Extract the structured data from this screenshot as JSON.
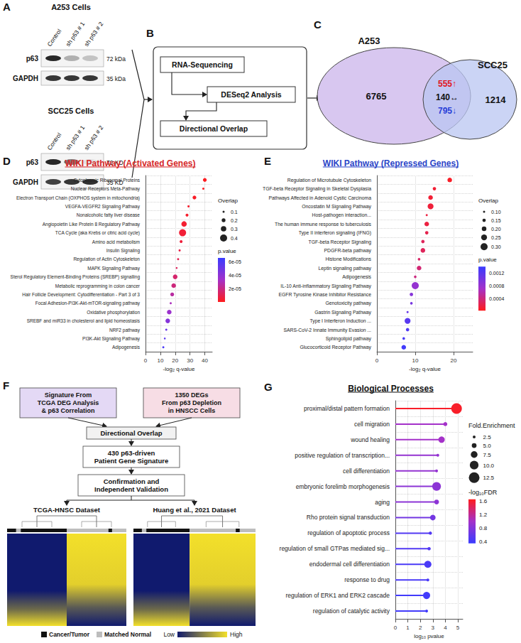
{
  "panel_letters": [
    "A",
    "B",
    "C",
    "D",
    "E",
    "F",
    "G"
  ],
  "panels": {
    "A": {
      "blots": [
        {
          "title": "A253 Cells",
          "lanes": [
            "Control",
            "sh p63 # 1",
            "sh p63 # 2"
          ],
          "rows": [
            {
              "protein": "p63",
              "size": "72 kDa"
            },
            {
              "protein": "GAPDH",
              "size": "35 kDa"
            }
          ]
        },
        {
          "title": "SCC25 Cells",
          "lanes": [
            "Control",
            "sh p63 # 1",
            "sh p63 # 2"
          ],
          "rows": [
            {
              "protein": "p63",
              "size": "72 KD"
            },
            {
              "protein": "GAPDH",
              "size": "35 KD"
            }
          ]
        }
      ]
    },
    "B": {
      "steps": [
        "RNA-Sequencing",
        "DESeq2 Analysis",
        "Directional Overlap"
      ]
    },
    "C": {
      "sets": [
        "A253",
        "SCC25"
      ],
      "only_first": "6765",
      "only_second": "1214",
      "shared": [
        "555↑",
        "140↔",
        "795↓"
      ]
    },
    "F": {
      "sources": [
        [
          "Signature From",
          "TCGA DEG Analysis",
          "& p63 Correlation"
        ],
        [
          "1350 DEGs",
          "From p63 Depletion",
          "in HNSCC Cells"
        ]
      ],
      "overlap": "Directional Overlap",
      "signature": [
        "430 p63-driven",
        "Patient Gene Signature"
      ],
      "validation": [
        "Confirmation and",
        "Independent Validation"
      ],
      "datasets": [
        "TCGA-HNSC Dataset",
        "Huang et al., 2021 Dataset"
      ],
      "legend": {
        "tumor": "Cancer/Tumor",
        "normal": "Matched Normal",
        "low": "Low",
        "high": "High"
      }
    }
  },
  "chart_data": [
    {
      "type": "scatter",
      "title": "WIKI Pathway (Activated Genes)",
      "x_label": "-log₂ q-value",
      "categories": [
        "Cytoplasmic Ribosomal Proteins",
        "Nuclear Receptors Meta-Pathway",
        "Electron Transport Chain (OXPHOS system in mitochondria)",
        "VEGFA-VEGFR2 Signaling Pathway",
        "Nonalcoholic fatty liver disease",
        "Angiopoietin Like Protein 8 Regulatory Pathway",
        "TCA Cycle (aka Krebs or citric acid cycle)",
        "Amino acid metabolism",
        "Insulin Signaling",
        "Regulation of Actin Cytoskeleton",
        "MAPK Signaling Pathway",
        "Sterol Regulatory Element-Binding Proteins (SREBP) signalling",
        "Metabolic reprogramming in colon cancer",
        "Hair Follicle Development: Cytodifferentiation - Part 3 of 3",
        "Focal Adhesion-PI3K-Akt-mTOR-signaling pathway",
        "Oxidative phosphorylation",
        "SREBF and miR33 in cholesterol and lipid homeostasis",
        "NRF2 pathway",
        "PI3K-Akt Signaling Pathway",
        "Adipogenesis"
      ],
      "values": [
        40,
        39,
        33,
        29,
        28,
        26,
        25,
        24,
        23,
        22,
        21,
        20,
        19,
        18,
        17,
        16,
        15,
        14,
        13,
        12
      ],
      "overlap": [
        0.2,
        0.1,
        0.2,
        0.1,
        0.15,
        0.3,
        0.4,
        0.15,
        0.1,
        0.1,
        0.08,
        0.25,
        0.25,
        0.2,
        0.1,
        0.25,
        0.25,
        0.1,
        0.08,
        0.1
      ],
      "p_value": [
        1e-06,
        1e-06,
        2e-06,
        3e-06,
        3e-06,
        4e-06,
        5e-06,
        6e-06,
        8e-06,
        1e-05,
        1.2e-05,
        1.5e-05,
        1.8e-05,
        2.5e-05,
        3e-05,
        3.5e-05,
        4.2e-05,
        5e-05,
        5.5e-05,
        6e-05
      ],
      "xlim": [
        0,
        45
      ],
      "xticks": [
        0,
        10,
        20,
        30,
        40
      ],
      "grid": true,
      "size_legend": {
        "title": "Overlap",
        "ticks": [
          0.1,
          0.2,
          0.3,
          0.4
        ]
      },
      "color_bar": {
        "title": "p.value",
        "range": [
          0,
          6.5e-05
        ],
        "ticks": [
          {
            "value": 6e-05,
            "label": "6e-05"
          },
          {
            "value": 4e-05,
            "label": "4e-05"
          },
          {
            "value": 2e-05,
            "label": "2e-05"
          }
        ],
        "colors": [
          "#ff1c1c",
          "#a431c9",
          "#3a3cff"
        ]
      }
    },
    {
      "type": "scatter",
      "title": "WIKI Pathway (Repressed Genes)",
      "x_label": "-log₂ q-value",
      "categories": [
        "Regulation of Microtubule Cytoskeleton",
        "TGF-beta Receptor Signaling in Skeletal Dysplasia",
        "Pathways Affected in Adenoid Cystic Carcinoma",
        "Oncostatin M Signaling Pathway",
        "Host-pathogen interaction...",
        "The human immune response to tuberculosis",
        "Type II interferon signaling (IFNG)",
        "TGF-beta Receptor Signaling",
        "PDGFR-beta pathway",
        "Histone Modifications",
        "Leptin signaling pathway",
        "Adipogenesis",
        "IL-10 Anti-inflammatory Signaling Pathway",
        "EGFR Tyrosine Kinase Inhibitor Resistance",
        "Genotoxicity pathway",
        "Gastrin Signaling Pathway",
        "Type I Interferon Induction ...",
        "SARS-CoV-2 Innate Immunity Evasion ...",
        "Sphingolipid pathway",
        "Glucocorticoid Receptor Pathway"
      ],
      "values": [
        19,
        15,
        14,
        14,
        13,
        13,
        13,
        12,
        12,
        11,
        11,
        10,
        10,
        9,
        9,
        8,
        8,
        8,
        7,
        7
      ],
      "overlap": [
        0.2,
        0.15,
        0.2,
        0.25,
        0.1,
        0.2,
        0.15,
        0.15,
        0.2,
        0.12,
        0.2,
        0.12,
        0.3,
        0.15,
        0.12,
        0.1,
        0.25,
        0.15,
        0.12,
        0.2
      ],
      "p_value": [
        5e-05,
        0.0001,
        0.0001,
        0.00012,
        0.00015,
        0.00015,
        0.0002,
        0.00025,
        0.00025,
        0.0003,
        0.00035,
        0.0004,
        0.0008,
        0.0009,
        0.001,
        0.0011,
        0.0012,
        0.00125,
        0.0013,
        0.00135
      ],
      "xlim": [
        0,
        25
      ],
      "xticks": [
        0,
        10,
        20
      ],
      "grid": true,
      "size_legend": {
        "title": "Overlap",
        "ticks": [
          {
            "value": 0.1,
            "label": "0.10"
          },
          0.15,
          {
            "value": 0.2,
            "label": "0.20"
          },
          0.25,
          {
            "value": 0.3,
            "label": "0.30"
          }
        ]
      },
      "color_bar": {
        "title": "p.value",
        "range": [
          0,
          0.0014
        ],
        "ticks": [
          0.0012,
          0.0008,
          0.0004
        ],
        "colors": [
          "#ff1c1c",
          "#a431c9",
          "#3a3cff"
        ]
      }
    },
    {
      "type": "lollipop",
      "title": "Biological Processes",
      "x_label": "log₁₀ pvalue",
      "categories": [
        "proximal/distal pattern formation",
        "cell migration",
        "wound healing",
        "positive regulation of transcription...",
        "cell differentiation",
        "embryonic forelimb morphogenesis",
        "aging",
        "Rho protein signal transduction",
        "regulation of apoptotic process",
        "regulation of small GTPas mediated sig...",
        "endodermal cell differentiation",
        "response to drug",
        "regulation of ERK1 and ERK2 cascade",
        "regulation of catalytic activity"
      ],
      "values": [
        4.9,
        4.0,
        3.7,
        3.4,
        3.3,
        3.3,
        3.3,
        3.0,
        2.8,
        2.7,
        2.6,
        2.6,
        2.5,
        2.5
      ],
      "fold_enrichment": [
        12.5,
        4,
        7,
        2.5,
        2.5,
        10,
        5,
        6,
        3,
        3,
        8,
        2.5,
        8,
        2.5
      ],
      "neg_log10_fdr": [
        1.6,
        1.0,
        1.0,
        0.9,
        0.9,
        0.85,
        0.85,
        0.7,
        0.5,
        0.5,
        0.45,
        0.45,
        0.4,
        0.4
      ],
      "xlim": [
        0,
        5.4
      ],
      "xticks": [
        0,
        1,
        2,
        3,
        4,
        5
      ],
      "grid": true,
      "size_legend": {
        "title": "Fold.Enrichment",
        "ticks": [
          2.5,
          {
            "value": 5,
            "label": "5.0"
          },
          7.5,
          {
            "value": 10,
            "label": "10.0"
          },
          12.5
        ]
      },
      "color_bar": {
        "title": "-log₁₀FDR",
        "range": [
          0.35,
          1.65
        ],
        "ticks": [
          1.6,
          1.2,
          0.8,
          0.4
        ],
        "colors": [
          "#3a3cff",
          "#a431c9",
          "#ff1c1c"
        ]
      }
    }
  ]
}
